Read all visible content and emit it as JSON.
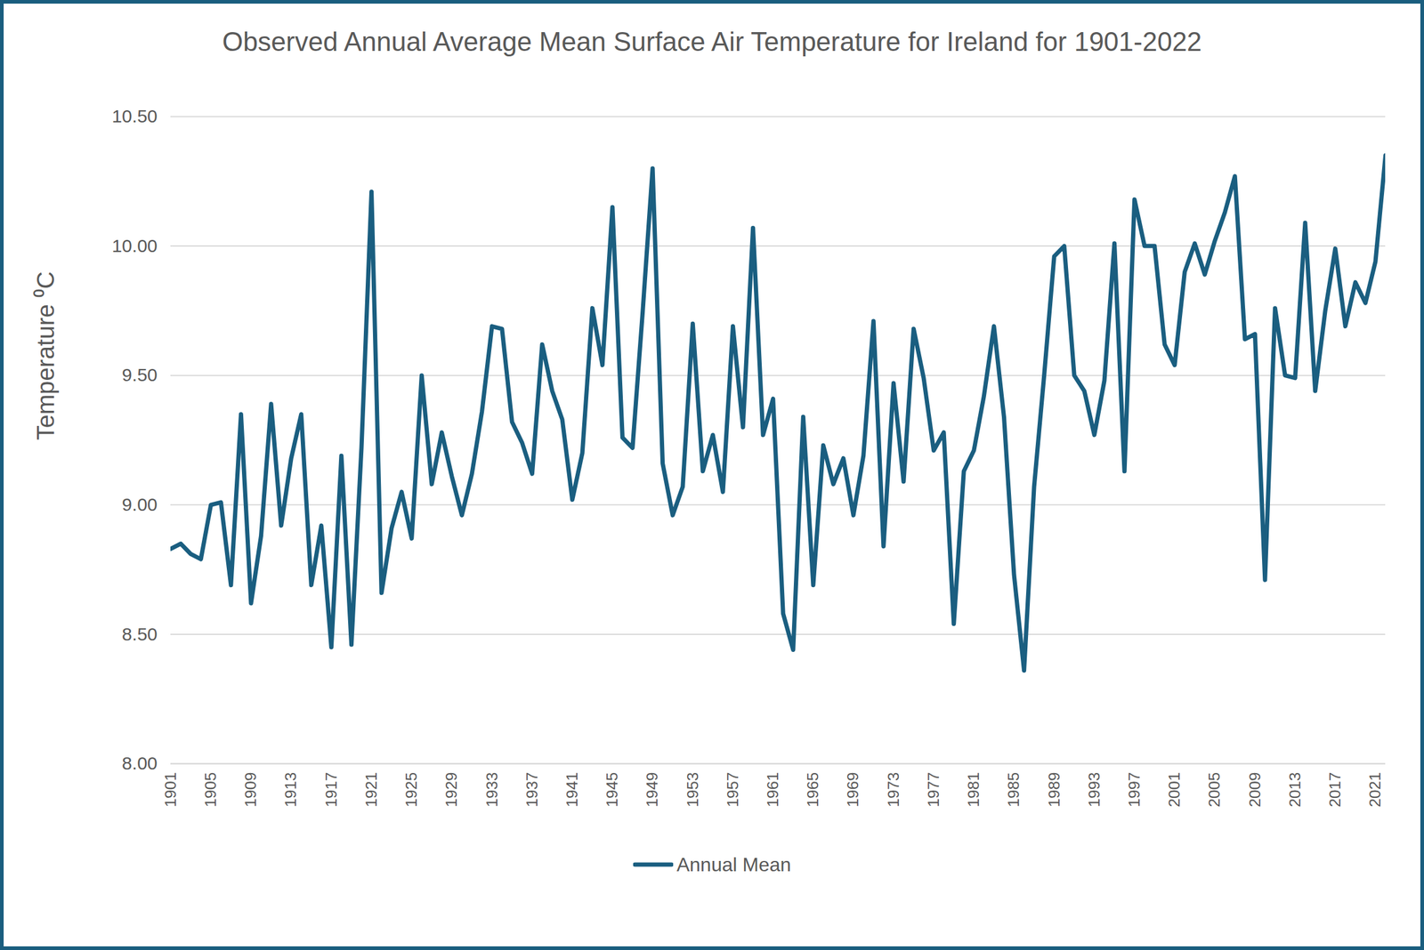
{
  "chart_data": {
    "type": "line",
    "title": "Observed Annual Average Mean Surface Air Temperature for Ireland for 1901-2022",
    "y_label": "Temperature ⁰C",
    "x": [
      1901,
      1902,
      1903,
      1904,
      1905,
      1906,
      1907,
      1908,
      1909,
      1910,
      1911,
      1912,
      1913,
      1914,
      1915,
      1916,
      1917,
      1918,
      1919,
      1920,
      1921,
      1922,
      1923,
      1924,
      1925,
      1926,
      1927,
      1928,
      1929,
      1930,
      1931,
      1932,
      1933,
      1934,
      1935,
      1936,
      1937,
      1938,
      1939,
      1940,
      1941,
      1942,
      1943,
      1944,
      1945,
      1946,
      1947,
      1948,
      1949,
      1950,
      1951,
      1952,
      1953,
      1954,
      1955,
      1956,
      1957,
      1958,
      1959,
      1960,
      1961,
      1962,
      1963,
      1964,
      1965,
      1966,
      1967,
      1968,
      1969,
      1970,
      1971,
      1972,
      1973,
      1974,
      1975,
      1976,
      1977,
      1978,
      1979,
      1980,
      1981,
      1982,
      1983,
      1984,
      1985,
      1986,
      1987,
      1988,
      1989,
      1990,
      1991,
      1992,
      1993,
      1994,
      1995,
      1996,
      1997,
      1998,
      1999,
      2000,
      2001,
      2002,
      2003,
      2004,
      2005,
      2006,
      2007,
      2008,
      2009,
      2010,
      2011,
      2012,
      2013,
      2014,
      2015,
      2016,
      2017,
      2018,
      2019,
      2020,
      2021,
      2022
    ],
    "series": [
      {
        "name": "Annual Mean",
        "color": "#1a5e80",
        "values": [
          8.83,
          8.85,
          8.81,
          8.79,
          9.0,
          9.01,
          8.69,
          9.35,
          8.62,
          8.88,
          9.39,
          8.92,
          9.18,
          9.35,
          8.69,
          8.92,
          8.45,
          9.19,
          8.46,
          9.22,
          10.21,
          8.66,
          8.91,
          9.05,
          8.87,
          9.5,
          9.08,
          9.28,
          9.11,
          8.96,
          9.12,
          9.36,
          9.69,
          9.68,
          9.32,
          9.24,
          9.12,
          9.62,
          9.44,
          9.33,
          9.02,
          9.2,
          9.76,
          9.54,
          10.15,
          9.26,
          9.22,
          9.74,
          10.3,
          9.16,
          8.96,
          9.07,
          9.7,
          9.13,
          9.27,
          9.05,
          9.69,
          9.3,
          10.07,
          9.27,
          9.41,
          8.58,
          8.44,
          9.34,
          8.69,
          9.23,
          9.08,
          9.18,
          8.96,
          9.19,
          9.71,
          8.84,
          9.47,
          9.09,
          9.68,
          9.49,
          9.21,
          9.28,
          8.54,
          9.13,
          9.21,
          9.42,
          9.69,
          9.34,
          8.73,
          8.36,
          9.07,
          9.5,
          9.96,
          10.0,
          9.5,
          9.44,
          9.27,
          9.48,
          10.01,
          9.13,
          10.18,
          10.0,
          10.0,
          9.62,
          9.54,
          9.9,
          10.01,
          9.89,
          10.02,
          10.13,
          10.27,
          9.64,
          9.66,
          8.71,
          9.76,
          9.5,
          9.49,
          10.09,
          9.44,
          9.75,
          9.99,
          9.69,
          9.86,
          9.78,
          9.94,
          10.35
        ]
      }
    ],
    "xlim": [
      1901,
      2022
    ],
    "xticks": [
      1901,
      1905,
      1909,
      1913,
      1917,
      1921,
      1925,
      1929,
      1933,
      1937,
      1941,
      1945,
      1949,
      1953,
      1957,
      1961,
      1965,
      1969,
      1973,
      1977,
      1981,
      1985,
      1989,
      1993,
      1997,
      2001,
      2005,
      2009,
      2013,
      2017,
      2021
    ],
    "ylim": [
      8,
      10.5
    ],
    "yticks": [
      {
        "value": 8,
        "label": "8.00"
      },
      {
        "value": 8.5,
        "label": "8.50"
      },
      {
        "value": 9,
        "label": "9.00"
      },
      {
        "value": 9.5,
        "label": "9.50"
      },
      {
        "value": 10,
        "label": "10.00"
      },
      {
        "value": 10.5,
        "label": "10.50"
      }
    ],
    "grid": true,
    "legend": "bottom"
  }
}
